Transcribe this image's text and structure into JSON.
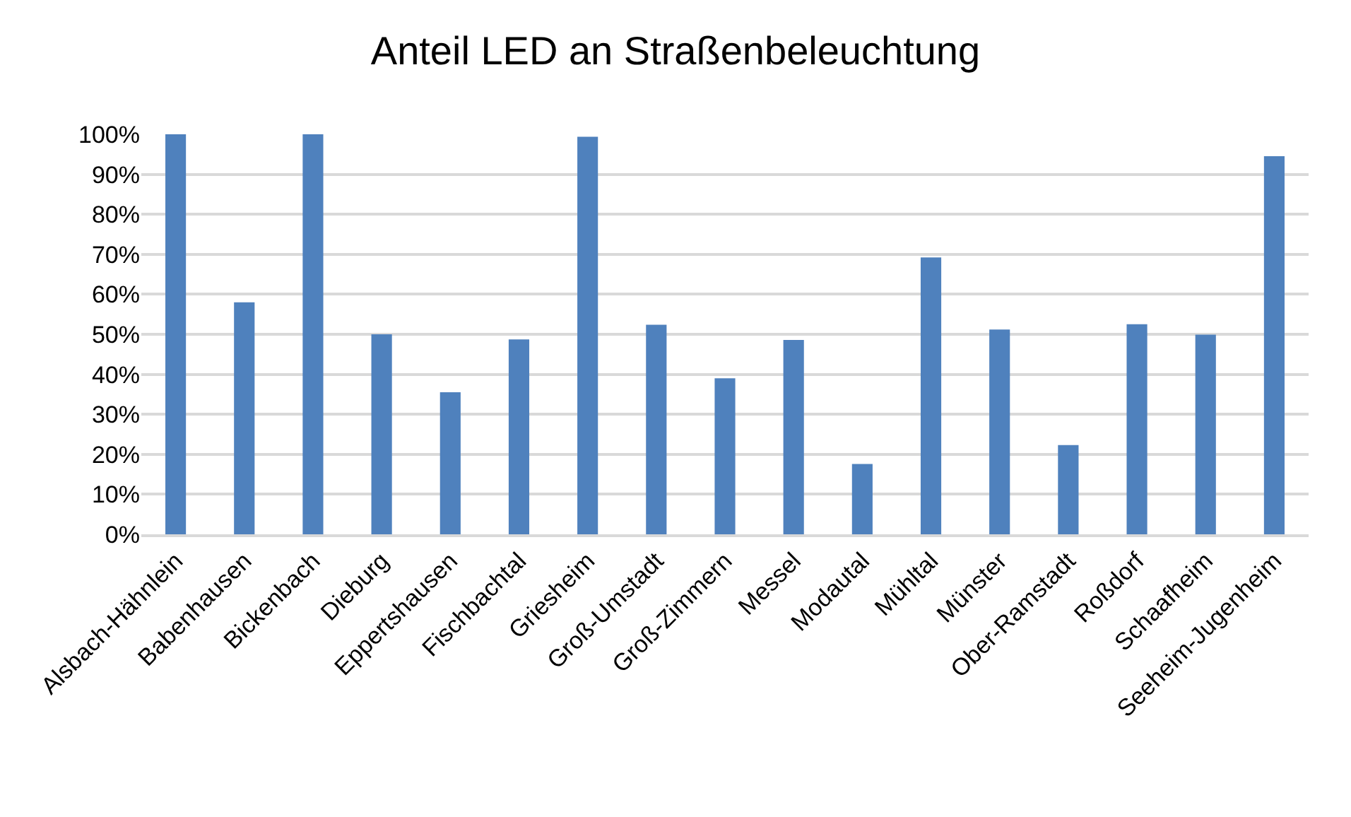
{
  "chart_data": {
    "type": "bar",
    "title": "Anteil LED an Straßenbeleuchtung",
    "categories": [
      "Alsbach-Hähnlein",
      "Babenhausen",
      "Bickenbach",
      "Dieburg",
      "Eppertshausen",
      "Fischbachtal",
      "Griesheim",
      "Groß-Umstadt",
      "Groß-Zimmern",
      "Messel",
      "Modautal",
      "Mühltal",
      "Münster",
      "Ober-Ramstadt",
      "Roßdorf",
      "Schaafheim",
      "Seeheim-Jugenheim"
    ],
    "values": [
      100,
      58,
      100,
      50,
      35.5,
      48.7,
      99.4,
      52.4,
      39,
      48.6,
      17.6,
      69.2,
      51.2,
      22.3,
      52.5,
      49.9,
      94.5
    ],
    "color": "#4f81bd",
    "ylim": [
      0,
      100
    ],
    "yticks": [
      {
        "value": 0,
        "label": "0%"
      },
      {
        "value": 10,
        "label": "10%"
      },
      {
        "value": 20,
        "label": "20%"
      },
      {
        "value": 30,
        "label": "30%"
      },
      {
        "value": 40,
        "label": "40%"
      },
      {
        "value": 50,
        "label": "50%"
      },
      {
        "value": 60,
        "label": "60%"
      },
      {
        "value": 70,
        "label": "70%"
      },
      {
        "value": 80,
        "label": "80%"
      },
      {
        "value": 90,
        "label": "90%"
      },
      {
        "value": 100,
        "label": "100%"
      }
    ],
    "grid": "y",
    "legend": false
  }
}
